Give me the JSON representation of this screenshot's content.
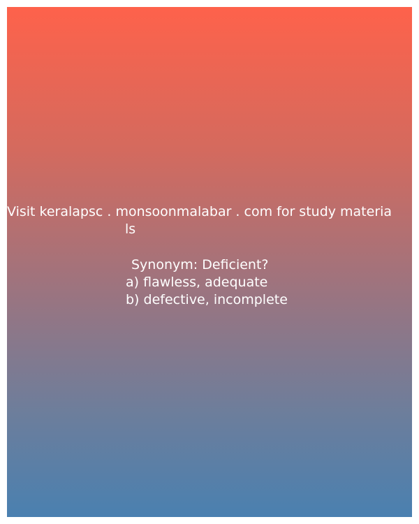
{
  "promo": {
    "line1": "Visit keralapsc . monsoonmalabar . com for study materia",
    "line2": "ls"
  },
  "question": {
    "stem": "Synonym: Deficient?",
    "options": [
      "a) flawless, adequate",
      "b) defective, incomplete"
    ]
  },
  "colors": {
    "gradient_top": "#fe624b",
    "gradient_bottom": "#4a80b0",
    "text": "#ffffff"
  }
}
